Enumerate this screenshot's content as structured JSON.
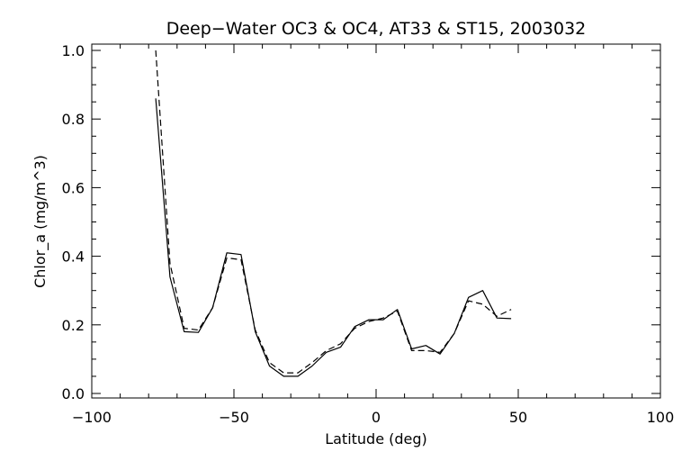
{
  "chart_data": {
    "type": "line",
    "title": "Deep−Water OC3 & OC4, AT33 & ST15, 2003032",
    "xlabel": "Latitude (deg)",
    "ylabel": "Chlor_a (mg/m^3)",
    "xlim": [
      -100,
      100
    ],
    "ylim": [
      0,
      1.0
    ],
    "x_ticks": [
      -100,
      -50,
      0,
      50,
      100
    ],
    "x_tick_labels": [
      "−100",
      "−50",
      "0",
      "50",
      "100"
    ],
    "y_ticks": [
      0.0,
      0.2,
      0.4,
      0.6,
      0.8,
      1.0
    ],
    "y_tick_labels": [
      "0.0",
      "0.2",
      "0.4",
      "0.6",
      "0.8",
      "1.0"
    ],
    "grid": false,
    "series": [
      {
        "style": "solid",
        "x": [
          -77.5,
          -72.5,
          -67.5,
          -62.5,
          -57.5,
          -52.5,
          -47.5,
          -42.5,
          -37.5,
          -32.5,
          -27.5,
          -22.5,
          -17.5,
          -12.5,
          -7.5,
          -2.5,
          2.5,
          7.5,
          12.5,
          17.5,
          22.5,
          27.5,
          32.5,
          37.5,
          42.5,
          47.5
        ],
        "y": [
          0.86,
          0.34,
          0.18,
          0.178,
          0.25,
          0.41,
          0.405,
          0.18,
          0.08,
          0.05,
          0.05,
          0.08,
          0.12,
          0.135,
          0.195,
          0.215,
          0.215,
          0.245,
          0.13,
          0.14,
          0.115,
          0.175,
          0.28,
          0.3,
          0.22,
          0.218
        ]
      },
      {
        "style": "dashed",
        "x": [
          -77.5,
          -72.5,
          -67.5,
          -62.5,
          -57.5,
          -52.5,
          -47.5,
          -42.5,
          -37.5,
          -32.5,
          -27.5,
          -22.5,
          -17.5,
          -12.5,
          -7.5,
          -2.5,
          2.5,
          7.5,
          12.5,
          17.5,
          22.5,
          27.5,
          32.5,
          37.5,
          42.5,
          47.5
        ],
        "y": [
          1.0,
          0.38,
          0.19,
          0.185,
          0.25,
          0.395,
          0.39,
          0.185,
          0.09,
          0.06,
          0.06,
          0.09,
          0.125,
          0.145,
          0.19,
          0.21,
          0.22,
          0.24,
          0.125,
          0.125,
          0.12,
          0.175,
          0.27,
          0.26,
          0.225,
          0.245
        ]
      }
    ]
  }
}
